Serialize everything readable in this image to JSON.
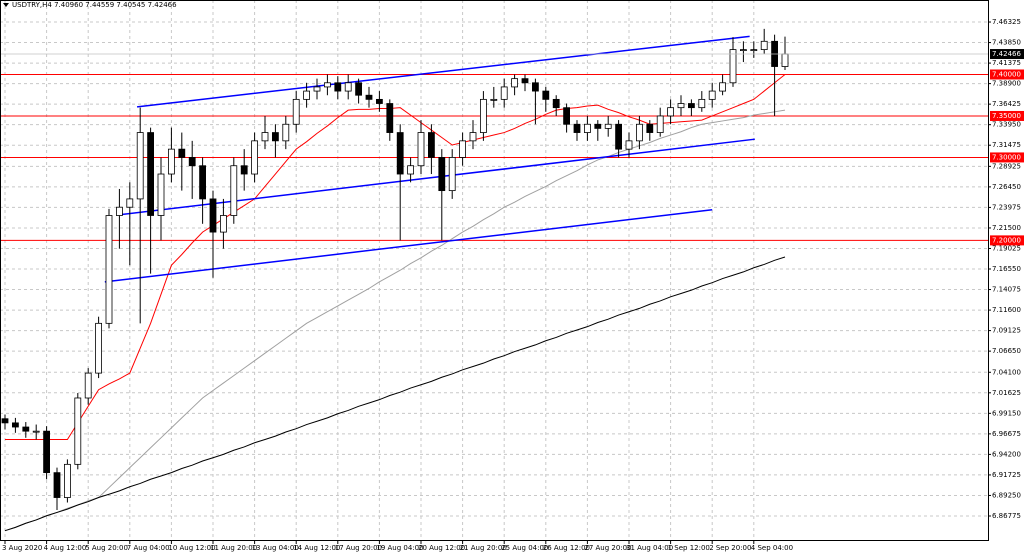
{
  "chart_data": {
    "type": "candlestick",
    "title": "USDTRY,H4  7.40960 7.44559 7.40545 7.42466",
    "categories": [
      "3 Aug 2020",
      null,
      null,
      null,
      "4 Aug 12:00",
      null,
      null,
      null,
      "5 Aug 20:00",
      null,
      null,
      null,
      "7 Aug 04:00",
      null,
      null,
      null,
      "10 Aug 12:00",
      null,
      null,
      null,
      "11 Aug 20:00",
      null,
      null,
      null,
      "13 Aug 04:00",
      null,
      null,
      null,
      "14 Aug 12:00",
      null,
      null,
      null,
      "17 Aug 20:00",
      null,
      null,
      null,
      "19 Aug 04:00",
      null,
      null,
      null,
      "20 Aug 12:00",
      null,
      null,
      null,
      "21 Aug 20:00",
      null,
      null,
      null,
      "25 Aug 04:00",
      null,
      null,
      null,
      "26 Aug 12:00",
      null,
      null,
      null,
      "27 Aug 20:00",
      null,
      null,
      null,
      "31 Aug 04:00",
      null,
      null,
      null,
      "1 Sep 12:00",
      null,
      null,
      null,
      "2 Sep 20:00",
      null,
      null,
      null,
      "4 Sep 04:00",
      null,
      null,
      null
    ],
    "open": [
      6.985,
      6.98,
      6.975,
      6.97,
      6.97,
      6.92,
      6.89,
      6.93,
      7.01,
      7.04,
      7.1,
      7.23,
      7.24,
      7.25,
      7.33,
      7.23,
      7.28,
      7.31,
      7.3,
      7.29,
      7.25,
      7.21,
      7.23,
      7.29,
      7.28,
      7.32,
      7.33,
      7.32,
      7.34,
      7.37,
      7.38,
      7.385,
      7.39,
      7.38,
      7.39,
      7.375,
      7.37,
      7.365,
      7.33,
      7.28,
      7.29,
      7.33,
      7.3,
      7.26,
      7.3,
      7.32,
      7.33,
      7.37,
      7.37,
      7.385,
      7.395,
      7.39,
      7.38,
      7.37,
      7.36,
      7.34,
      7.33,
      7.34,
      7.335,
      7.34,
      7.31,
      7.32,
      7.34,
      7.33,
      7.35,
      7.36,
      7.365,
      7.36,
      7.37,
      7.38,
      7.39,
      7.43,
      7.43,
      7.43,
      7.44,
      7.4096
    ],
    "high": [
      6.99,
      6.986,
      6.981,
      6.978,
      6.976,
      6.926,
      6.936,
      7.016,
      7.046,
      7.108,
      7.238,
      7.262,
      7.27,
      7.36,
      7.336,
      7.3,
      7.336,
      7.33,
      7.32,
      7.3,
      7.26,
      7.25,
      7.3,
      7.31,
      7.33,
      7.35,
      7.34,
      7.35,
      7.38,
      7.39,
      7.395,
      7.4,
      7.398,
      7.4,
      7.395,
      7.385,
      7.38,
      7.37,
      7.34,
      7.3,
      7.345,
      7.34,
      7.31,
      7.31,
      7.33,
      7.345,
      7.38,
      7.385,
      7.395,
      7.4,
      7.4,
      7.395,
      7.385,
      7.375,
      7.365,
      7.345,
      7.35,
      7.345,
      7.35,
      7.345,
      7.33,
      7.35,
      7.345,
      7.36,
      7.37,
      7.375,
      7.37,
      7.38,
      7.39,
      7.4,
      7.445,
      7.44,
      7.44,
      7.455,
      7.448,
      7.44559
    ],
    "low": [
      6.972,
      6.968,
      6.962,
      6.96,
      6.912,
      6.875,
      6.884,
      6.924,
      7.002,
      7.034,
      7.094,
      7.19,
      7.17,
      7.1,
      7.16,
      7.2,
      7.27,
      7.26,
      7.25,
      7.22,
      7.155,
      7.19,
      7.22,
      7.26,
      7.27,
      7.31,
      7.3,
      7.31,
      7.33,
      7.36,
      7.37,
      7.375,
      7.37,
      7.37,
      7.365,
      7.36,
      7.355,
      7.32,
      7.2,
      7.27,
      7.28,
      7.28,
      7.2,
      7.25,
      7.29,
      7.31,
      7.32,
      7.36,
      7.36,
      7.375,
      7.38,
      7.34,
      7.355,
      7.35,
      7.33,
      7.32,
      7.32,
      7.32,
      7.325,
      7.3,
      7.3,
      7.31,
      7.32,
      7.325,
      7.34,
      7.35,
      7.35,
      7.355,
      7.36,
      7.375,
      7.385,
      7.415,
      7.42,
      7.425,
      7.35,
      7.40545
    ],
    "close": [
      6.98,
      6.975,
      6.97,
      6.97,
      6.92,
      6.89,
      6.93,
      7.01,
      7.04,
      7.1,
      7.23,
      7.24,
      7.25,
      7.33,
      7.23,
      7.28,
      7.31,
      7.3,
      7.29,
      7.25,
      7.21,
      7.23,
      7.29,
      7.28,
      7.32,
      7.33,
      7.32,
      7.34,
      7.37,
      7.38,
      7.385,
      7.39,
      7.38,
      7.39,
      7.375,
      7.37,
      7.365,
      7.33,
      7.28,
      7.29,
      7.33,
      7.3,
      7.26,
      7.3,
      7.32,
      7.33,
      7.37,
      7.37,
      7.385,
      7.395,
      7.39,
      7.38,
      7.37,
      7.36,
      7.34,
      7.33,
      7.34,
      7.335,
      7.34,
      7.31,
      7.32,
      7.34,
      7.33,
      7.35,
      7.36,
      7.365,
      7.36,
      7.37,
      7.38,
      7.39,
      7.43,
      7.43,
      7.43,
      7.44,
      7.4096,
      7.42466
    ],
    "up_color": "#ffffff",
    "down_color": "#000000",
    "series": [
      {
        "color": "#ff0000",
        "values": [
          6.96,
          6.96,
          6.96,
          6.96,
          6.96,
          6.96,
          6.96,
          6.98,
          7.0,
          7.02,
          7.027,
          7.033,
          7.04,
          7.07,
          7.1,
          7.135,
          7.17,
          7.183,
          7.197,
          7.21,
          7.218,
          7.226,
          7.234,
          7.242,
          7.25,
          7.265,
          7.28,
          7.295,
          7.31,
          7.319,
          7.329,
          7.338,
          7.348,
          7.357,
          7.358,
          7.358,
          7.359,
          7.359,
          7.36,
          7.351,
          7.342,
          7.333,
          7.324,
          7.315,
          7.318,
          7.321,
          7.324,
          7.327,
          7.33,
          7.335,
          7.341,
          7.346,
          7.352,
          7.357,
          7.359,
          7.36,
          7.362,
          7.363,
          7.358,
          7.354,
          7.349,
          7.345,
          7.34,
          7.341,
          7.342,
          7.343,
          7.344,
          7.345,
          7.35,
          7.355,
          7.36,
          7.365,
          7.37,
          7.38,
          7.39,
          7.4
        ]
      },
      {
        "color": "#a0a0a0",
        "values": [
          6.85,
          6.854,
          6.859,
          6.863,
          6.868,
          6.872,
          6.877,
          6.881,
          6.886,
          6.89,
          6.902,
          6.914,
          6.926,
          6.938,
          6.95,
          6.962,
          6.974,
          6.986,
          6.998,
          7.01,
          7.019,
          7.028,
          7.037,
          7.046,
          7.055,
          7.064,
          7.073,
          7.082,
          7.091,
          7.1,
          7.107,
          7.114,
          7.121,
          7.128,
          7.135,
          7.142,
          7.15,
          7.157,
          7.164,
          7.172,
          7.179,
          7.187,
          7.194,
          7.202,
          7.21,
          7.217,
          7.225,
          7.232,
          7.24,
          7.246,
          7.253,
          7.259,
          7.265,
          7.272,
          7.278,
          7.284,
          7.291,
          7.297,
          7.301,
          7.306,
          7.31,
          7.314,
          7.318,
          7.323,
          7.327,
          7.331,
          7.336,
          7.34,
          7.342,
          7.344,
          7.346,
          7.348,
          7.351,
          7.353,
          7.355,
          7.357
        ]
      },
      {
        "color": "#000000",
        "values": [
          6.85,
          6.854,
          6.859,
          6.863,
          6.868,
          6.872,
          6.876,
          6.881,
          6.885,
          6.89,
          6.894,
          6.898,
          6.903,
          6.907,
          6.912,
          6.916,
          6.92,
          6.925,
          6.929,
          6.934,
          6.938,
          6.942,
          6.947,
          6.951,
          6.956,
          6.96,
          6.964,
          6.969,
          6.973,
          6.978,
          6.982,
          6.986,
          6.991,
          6.995,
          7.0,
          7.004,
          7.008,
          7.013,
          7.017,
          7.022,
          7.026,
          7.03,
          7.035,
          7.039,
          7.044,
          7.048,
          7.052,
          7.057,
          7.061,
          7.066,
          7.07,
          7.074,
          7.079,
          7.083,
          7.088,
          7.092,
          7.096,
          7.101,
          7.105,
          7.11,
          7.114,
          7.118,
          7.123,
          7.127,
          7.132,
          7.136,
          7.14,
          7.145,
          7.149,
          7.154,
          7.158,
          7.162,
          7.167,
          7.171,
          7.176,
          7.18
        ]
      }
    ],
    "trendlines": [
      {
        "color": "#0000ff",
        "x": [
          12.7,
          71.6
        ],
        "y": [
          7.361,
          7.446
        ]
      },
      {
        "color": "#0000ff",
        "x": [
          11.1,
          72.1
        ],
        "y": [
          7.231,
          7.322
        ]
      },
      {
        "color": "#0000ff",
        "x": [
          9.6,
          68
        ],
        "y": [
          7.15,
          7.237
        ]
      }
    ],
    "levels": [
      {
        "value": 7.4,
        "label": "7.40000"
      },
      {
        "value": 7.35,
        "label": "7.35000"
      },
      {
        "value": 7.3,
        "label": "7.30000"
      },
      {
        "value": 7.2,
        "label": "7.20000"
      }
    ],
    "level_color": "#ff0000",
    "last_price": {
      "value": 7.42466,
      "label": "7.42466"
    },
    "ylim": [
      6.8388,
      7.4898
    ],
    "yticks": [
      {
        "value": 7.46325,
        "label": "7.46325"
      },
      {
        "value": 7.4385,
        "label": "7.43850"
      },
      {
        "value": 7.41375,
        "label": "7.41375"
      },
      {
        "value": 7.389,
        "label": "7.38900"
      },
      {
        "value": 7.36425,
        "label": "7.36425"
      },
      {
        "value": 7.3395,
        "label": "7.33950"
      },
      {
        "value": 7.31475,
        "label": "7.31475"
      },
      {
        "value": 7.28925,
        "label": "7.28925"
      },
      {
        "value": 7.2645,
        "label": "7.26450"
      },
      {
        "value": 7.23975,
        "label": "7.23975"
      },
      {
        "value": 7.215,
        "label": "7.21500"
      },
      {
        "value": 7.19025,
        "label": "7.19025"
      },
      {
        "value": 7.1655,
        "label": "7.16550"
      },
      {
        "value": 7.14075,
        "label": "7.14075"
      },
      {
        "value": 7.116,
        "label": "7.11600"
      },
      {
        "value": 7.09125,
        "label": "7.09125"
      },
      {
        "value": 7.0665,
        "label": "7.06650"
      },
      {
        "value": 7.041,
        "label": "7.04100"
      },
      {
        "value": 7.01625,
        "label": "7.01625"
      },
      {
        "value": 6.9915,
        "label": "6.99150"
      },
      {
        "value": 6.96675,
        "label": "6.96675"
      },
      {
        "value": 6.942,
        "label": "6.94200"
      },
      {
        "value": 6.91725,
        "label": "6.91725"
      },
      {
        "value": 6.8925,
        "label": "6.89250"
      },
      {
        "value": 6.86775,
        "label": "6.86775"
      }
    ],
    "grid": true
  }
}
